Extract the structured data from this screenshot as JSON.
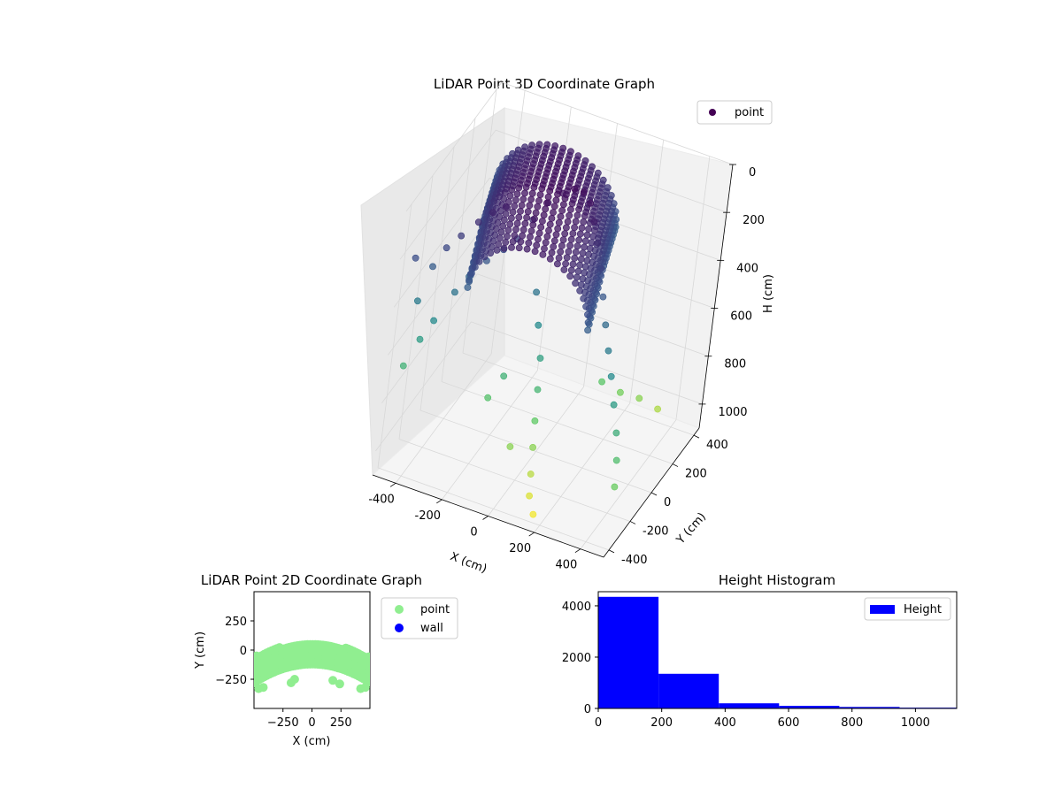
{
  "chart_data": [
    {
      "type": "scatter3d",
      "title": "LiDAR Point 3D Coordinate Graph",
      "xlabel": "X (cm)",
      "ylabel": "Y (cm)",
      "zlabel": "H (cm)",
      "xlim": [
        -500,
        500
      ],
      "ylim": [
        -450,
        450
      ],
      "zlim": [
        0,
        1100
      ],
      "z_inverted": true,
      "x_ticks": [
        "-400",
        "-200",
        "0",
        "200",
        "400"
      ],
      "y_ticks": [
        "-400",
        "-200",
        "0",
        "200",
        "400"
      ],
      "z_ticks": [
        "0",
        "200",
        "400",
        "600",
        "800",
        "1000"
      ],
      "x_tick_values": [
        -400,
        -200,
        0,
        200,
        400
      ],
      "y_tick_values": [
        -400,
        -200,
        0,
        200,
        400
      ],
      "z_tick_values": [
        0,
        200,
        400,
        600,
        800,
        1000
      ],
      "colormap": "viridis",
      "grid": true,
      "legend": {
        "placement": "top-right",
        "entries": [
          {
            "label": "point",
            "color": "#440154"
          }
        ]
      },
      "sample_points": [
        [
          -480,
          -330,
          260
        ],
        [
          -460,
          -300,
          450
        ],
        [
          -430,
          -260,
          320
        ],
        [
          -390,
          -240,
          240
        ],
        [
          -350,
          -200,
          200
        ],
        [
          -300,
          -160,
          150
        ],
        [
          -260,
          -120,
          120
        ],
        [
          -220,
          -90,
          100
        ],
        [
          -470,
          -340,
          700
        ],
        [
          -430,
          -300,
          600
        ],
        [
          -390,
          -280,
          520
        ],
        [
          -340,
          -220,
          420
        ],
        [
          -300,
          -190,
          360
        ],
        [
          -250,
          -150,
          300
        ],
        [
          -200,
          -110,
          260
        ],
        [
          -160,
          -80,
          220
        ],
        [
          -120,
          -40,
          150
        ],
        [
          -80,
          0,
          90
        ],
        [
          -40,
          40,
          60
        ],
        [
          0,
          60,
          40
        ],
        [
          40,
          60,
          40
        ],
        [
          80,
          40,
          60
        ],
        [
          120,
          0,
          100
        ],
        [
          160,
          -40,
          150
        ],
        [
          200,
          -80,
          220
        ],
        [
          240,
          -120,
          300
        ],
        [
          280,
          -160,
          380
        ],
        [
          320,
          -200,
          450
        ],
        [
          360,
          -240,
          520
        ],
        [
          400,
          -280,
          600
        ],
        [
          440,
          -320,
          680
        ],
        [
          470,
          -360,
          760
        ],
        [
          490,
          -400,
          840
        ],
        [
          -60,
          -60,
          420
        ],
        [
          -20,
          -100,
          520
        ],
        [
          20,
          -140,
          620
        ],
        [
          40,
          -180,
          720
        ],
        [
          60,
          -220,
          820
        ],
        [
          80,
          -260,
          900
        ],
        [
          100,
          -300,
          980
        ],
        [
          120,
          -340,
          1040
        ],
        [
          -100,
          -200,
          700
        ],
        [
          -140,
          -240,
          780
        ],
        [
          0,
          -300,
          900
        ],
        [
          160,
          -380,
          1080
        ],
        [
          200,
          100,
          800
        ],
        [
          260,
          160,
          860
        ],
        [
          320,
          220,
          900
        ],
        [
          380,
          280,
          960
        ]
      ]
    },
    {
      "type": "scatter",
      "title": "LiDAR Point 2D Coordinate Graph",
      "xlabel": "X (cm)",
      "ylabel": "Y (cm)",
      "xlim": [
        -500,
        500
      ],
      "ylim": [
        -500,
        500
      ],
      "x_ticks": [
        "−250",
        "0",
        "250"
      ],
      "y_ticks": [
        "250",
        "0",
        "−250"
      ],
      "x_tick_values": [
        -250,
        0,
        250
      ],
      "y_tick_values": [
        250,
        0,
        -250
      ],
      "grid": false,
      "legend": {
        "placement": "outside-right",
        "entries": [
          {
            "label": "point",
            "color": "#90ee90"
          },
          {
            "label": "wall",
            "color": "#0000ff"
          }
        ]
      },
      "series": [
        {
          "name": "point",
          "color": "#90ee90",
          "x": [],
          "y": []
        },
        {
          "name": "wall",
          "color": "#0000ff",
          "x": [],
          "y": []
        }
      ]
    },
    {
      "type": "bar",
      "subtype": "histogram",
      "title": "Height Histogram",
      "xlabel": "",
      "ylabel": "",
      "xlim": [
        0,
        1130
      ],
      "ylim": [
        0,
        4550
      ],
      "x_ticks": [
        "0",
        "200",
        "400",
        "600",
        "800",
        "1000"
      ],
      "y_ticks": [
        "0",
        "2000",
        "4000"
      ],
      "x_tick_values": [
        0,
        200,
        400,
        600,
        800,
        1000
      ],
      "y_tick_values": [
        0,
        2000,
        4000
      ],
      "bins": [
        0,
        190,
        380,
        570,
        760,
        950,
        1130
      ],
      "counts": [
        4350,
        1350,
        200,
        100,
        60,
        30
      ],
      "color": "#0000ff",
      "legend": {
        "placement": "top-right",
        "entries": [
          {
            "label": "Height",
            "color": "#0000ff"
          }
        ]
      }
    }
  ]
}
